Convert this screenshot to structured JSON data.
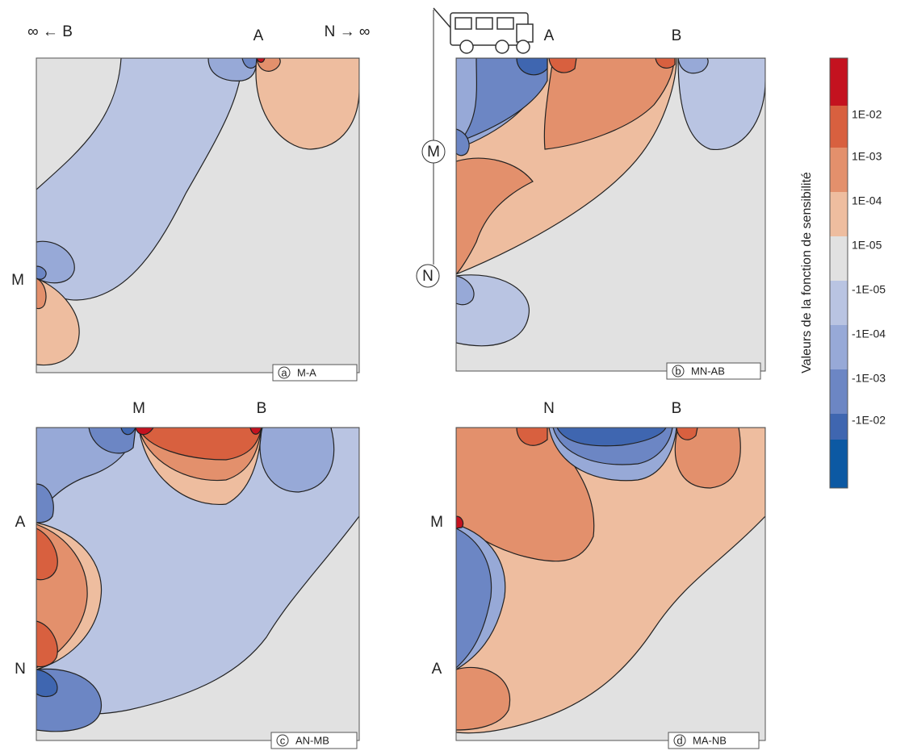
{
  "panels": [
    {
      "letter": "a",
      "name": "M-A",
      "labels": [
        "∞ ← B",
        "A",
        "N → ∞",
        "M"
      ]
    },
    {
      "letter": "b",
      "name": "MN-AB",
      "labels": [
        "A",
        "B",
        "M",
        "N"
      ]
    },
    {
      "letter": "c",
      "name": "AN-MB",
      "labels": [
        "M",
        "B",
        "A",
        "N"
      ]
    },
    {
      "letter": "d",
      "name": "MA-NB",
      "labels": [
        "N",
        "B",
        "M",
        "A"
      ]
    }
  ],
  "colorbar": {
    "title": "Valeurs de la fonction de sensibilité",
    "labels": [
      "1E-02",
      "1E-03",
      "1E-04",
      "1E-05",
      "-1E-05",
      "-1E-04",
      "-1E-03",
      "-1E-02"
    ]
  }
}
